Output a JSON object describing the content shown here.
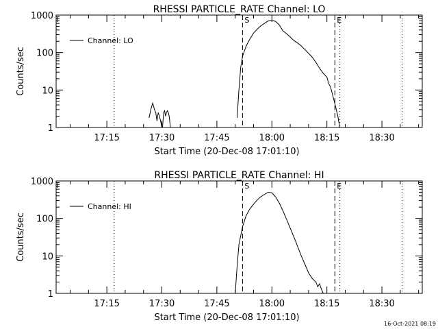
{
  "footer_timestamp": "16-Oct-2021 08:19",
  "chart_data": [
    {
      "type": "line",
      "title": "RHESSI PARTICLE_RATE Channel: LO",
      "xlabel": "Start Time (20-Dec-08 17:01:10)",
      "ylabel": "Counts/sec",
      "y_scale": "log",
      "ylim": [
        1,
        1000
      ],
      "ytick_labels": [
        "1",
        "10",
        "100",
        "1000"
      ],
      "xlim": [
        "17:01:10",
        "18:41:00"
      ],
      "xtick_labels": [
        "17:15",
        "17:30",
        "17:45",
        "18:00",
        "18:15",
        "18:30"
      ],
      "legend": {
        "position": "top-left",
        "label": "Channel: LO"
      },
      "markers": [
        {
          "label": "S",
          "time": "17:52:00",
          "style": "dashed"
        },
        {
          "label": "E",
          "time": "18:17:10",
          "style": "dashed"
        }
      ],
      "dotted_lines": [
        "17:17:00",
        "18:18:30",
        "18:35:30"
      ],
      "series": [
        {
          "segments": [
            {
              "x": [
                "17:26:30",
                "17:27:00",
                "17:27:30",
                "17:28:00",
                "17:28:20",
                "17:28:40",
                "17:29:00",
                "17:29:20",
                "17:29:40",
                "17:30:00",
                "17:30:10",
                "17:30:30",
                "17:30:45",
                "17:31:00",
                "17:31:15",
                "17:31:30",
                "17:31:45",
                "17:32:00",
                "17:32:20"
              ],
              "y": [
                1.8,
                3.0,
                4.5,
                3.0,
                2.5,
                1.5,
                2.5,
                2.0,
                1.5,
                1.0,
                1.0,
                2.5,
                2.8,
                2.0,
                2.5,
                2.8,
                2.5,
                2.0,
                1.0
              ]
            },
            {
              "x": [
                "17:50:30",
                "17:51:00",
                "17:51:30",
                "17:52:00",
                "17:53:00",
                "17:54:00",
                "17:55:00",
                "17:56:00",
                "17:57:00",
                "17:58:00",
                "17:59:00",
                "18:00:00",
                "18:01:00",
                "18:02:00",
                "18:03:00",
                "18:04:00",
                "18:05:00",
                "18:06:00",
                "18:07:00",
                "18:08:00",
                "18:09:00",
                "18:10:00",
                "18:11:00",
                "18:12:00",
                "18:13:00",
                "18:14:00",
                "18:15:00",
                "18:15:30",
                "18:16:00",
                "18:17:00",
                "18:18:00",
                "18:18:30"
              ],
              "y": [
                1.8,
                10,
                40,
                80,
                150,
                230,
                330,
                420,
                520,
                600,
                700,
                720,
                680,
                550,
                380,
                320,
                260,
                210,
                180,
                150,
                120,
                95,
                75,
                55,
                38,
                28,
                22,
                15,
                12,
                5,
                2,
                1
              ]
            }
          ]
        }
      ]
    },
    {
      "type": "line",
      "title": "RHESSI PARTICLE_RATE Channel: HI",
      "xlabel": "Start Time (20-Dec-08 17:01:10)",
      "ylabel": "Counts/sec",
      "y_scale": "log",
      "ylim": [
        1,
        1000
      ],
      "ytick_labels": [
        "1",
        "10",
        "100",
        "1000"
      ],
      "xlim": [
        "17:01:10",
        "18:41:00"
      ],
      "xtick_labels": [
        "17:15",
        "17:30",
        "17:45",
        "18:00",
        "18:15",
        "18:30"
      ],
      "legend": {
        "position": "top-left",
        "label": "Channel: HI"
      },
      "markers": [
        {
          "label": "S",
          "time": "17:52:00",
          "style": "dashed"
        },
        {
          "label": "E",
          "time": "18:17:10",
          "style": "dashed"
        }
      ],
      "dotted_lines": [
        "17:17:00",
        "18:18:30",
        "18:35:30"
      ],
      "series": [
        {
          "segments": [
            {
              "x": [
                "17:50:00",
                "17:50:30",
                "17:51:00",
                "17:52:00",
                "17:53:00",
                "17:54:00",
                "17:55:00",
                "17:56:00",
                "17:57:00",
                "17:58:00",
                "17:59:00",
                "18:00:00",
                "18:01:00",
                "18:02:00",
                "18:03:00",
                "18:04:00",
                "18:05:00",
                "18:06:00",
                "18:07:00",
                "18:08:00",
                "18:09:00",
                "18:10:00",
                "18:11:00",
                "18:12:00",
                "18:12:30",
                "18:13:00",
                "18:13:30",
                "18:14:00"
              ],
              "y": [
                1,
                5,
                20,
                60,
                120,
                180,
                240,
                310,
                380,
                440,
                500,
                480,
                380,
                260,
                160,
                95,
                55,
                32,
                18,
                10,
                6,
                3.5,
                2.5,
                2,
                1.5,
                1.8,
                1.3,
                1
              ]
            }
          ]
        }
      ]
    }
  ]
}
